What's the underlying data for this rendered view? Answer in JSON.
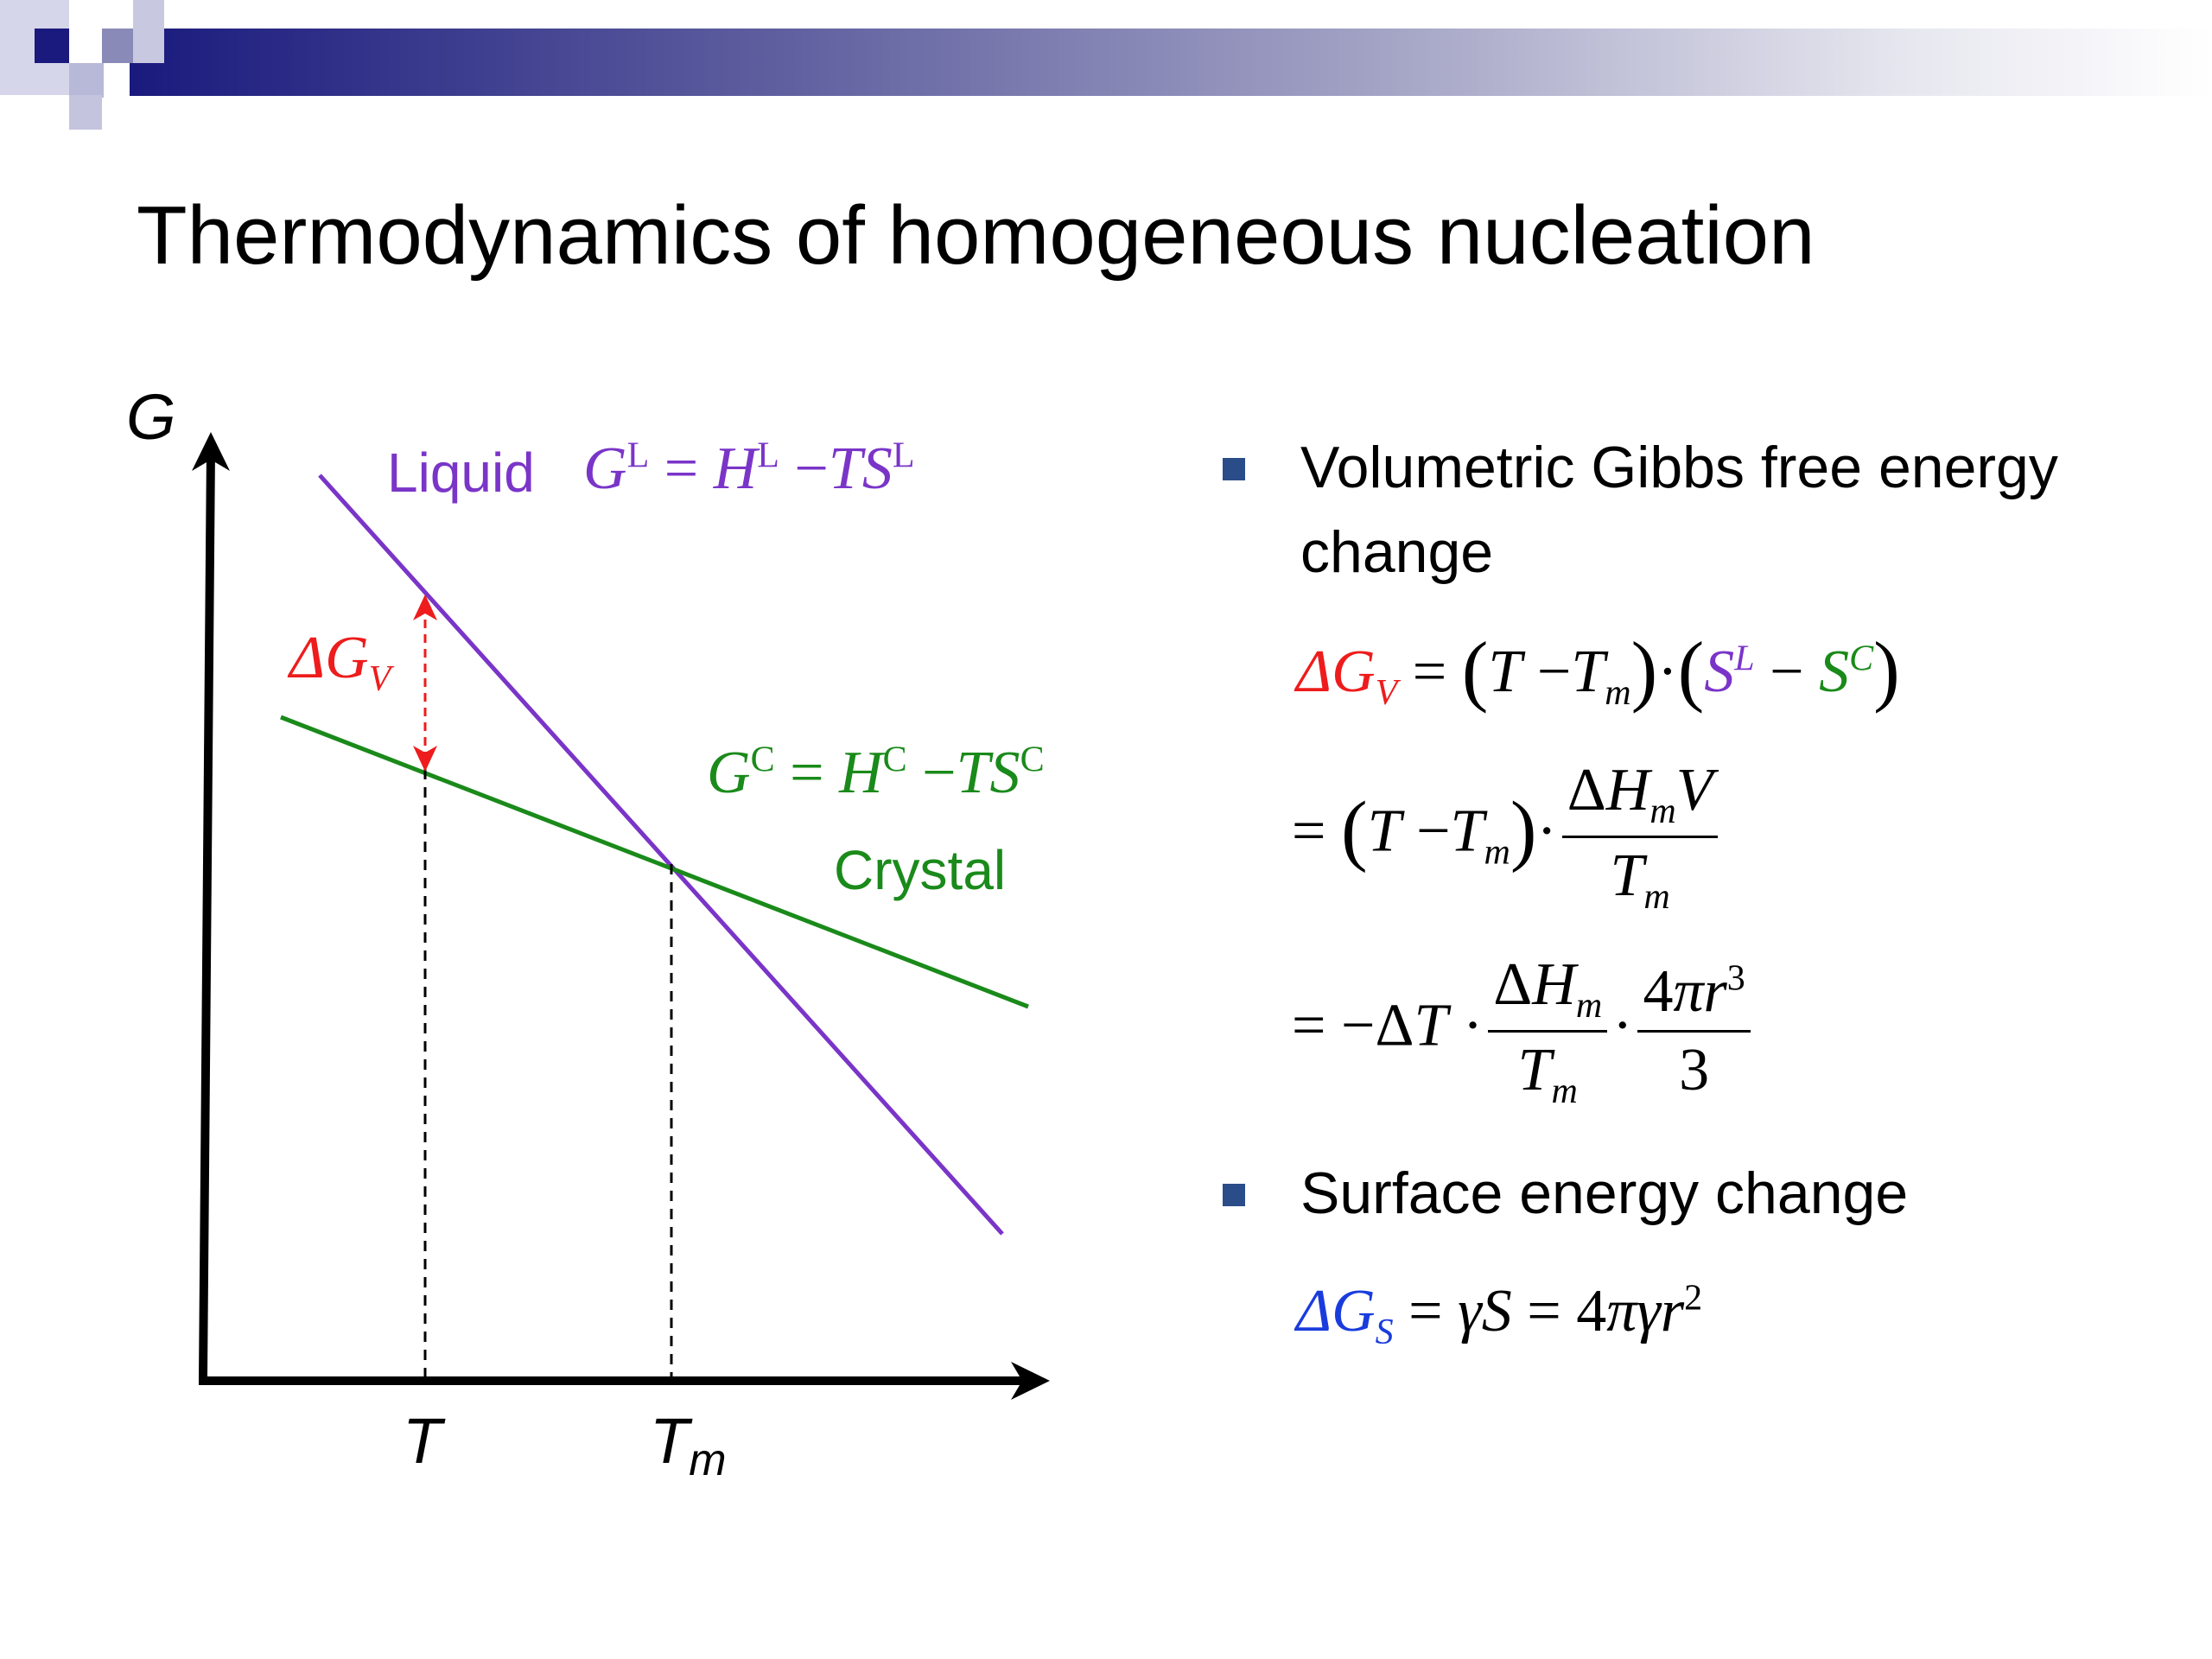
{
  "title": "Thermodynamics of homogeneous nucleation",
  "diagram": {
    "axis_y": "G",
    "axis_x_T": "T",
    "axis_x_Tm_main": "T",
    "axis_x_Tm_sub": "m",
    "liquid_label": "Liquid",
    "liquid_eq": "G^L = H^L − TS^L",
    "crystal_label": "Crystal",
    "crystal_eq": "G^C = H^C − TS^C",
    "delta_gv": "ΔG_V",
    "colors": {
      "liquid": "#7a35c8",
      "crystal": "#1a8a1a",
      "delta": "#ee1c1c",
      "axis": "#000000"
    }
  },
  "bullets": [
    {
      "text": "Volumetric Gibbs free energy change"
    },
    {
      "text": "Surface energy change"
    }
  ],
  "equations": {
    "eq1": "ΔG_V = (T − T_m)·(S^L − S^C)",
    "eq2": "= (T − T_m)·ΔH_m V / T_m",
    "eq3": "= −ΔT · ΔH_m / T_m · 4πr^3 / 3",
    "eq4": "ΔG_S = γS = 4πγr^2"
  }
}
